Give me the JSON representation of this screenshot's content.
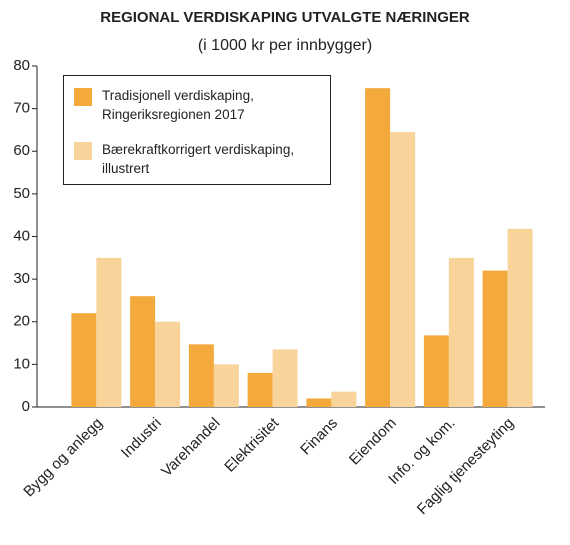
{
  "chart_data": {
    "type": "bar",
    "title": "REGIONAL VERDISKAPING UTVALGTE NÆRINGER",
    "subtitle": "(i 1000 kr per innbygger)",
    "categories": [
      "Bygg og anlegg",
      "Industri",
      "Varehandel",
      "Elektrisitet",
      "Finans",
      "Eiendom",
      "Info. og kom.",
      "Faglig tjenesteyting"
    ],
    "series": [
      {
        "name": "Tradisjonell verdiskaping, Ringeriksregionen 2017",
        "color": "#f3a93c",
        "values": [
          22,
          26,
          14.7,
          8,
          2,
          74.8,
          16.8,
          32
        ]
      },
      {
        "name": "Bærekraftkorrigert verdiskaping, illustrert",
        "color": "#f9d49a",
        "values": [
          35,
          20,
          10,
          13.5,
          3.6,
          64.5,
          35,
          41.8
        ]
      }
    ],
    "ylim": [
      0,
      80
    ],
    "yticks": [
      0,
      10,
      20,
      30,
      40,
      50,
      60,
      70,
      80
    ],
    "grid": false
  }
}
